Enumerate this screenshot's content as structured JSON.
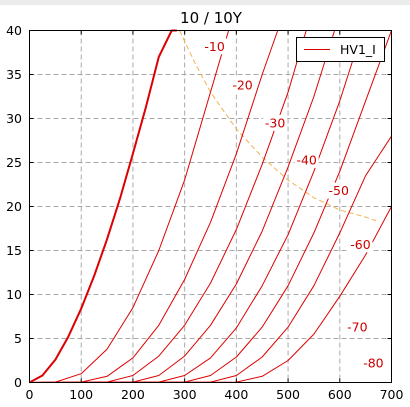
{
  "chart_data": {
    "type": "line",
    "title": "10 / 10Y",
    "xlabel": "",
    "ylabel": "",
    "xlim": [
      0,
      700
    ],
    "ylim": [
      0,
      40
    ],
    "xticks": [
      0,
      100,
      200,
      300,
      400,
      500,
      600,
      700
    ],
    "yticks": [
      0,
      5,
      10,
      15,
      20,
      25,
      30,
      35,
      40
    ],
    "grid": true,
    "grid_style": "dashed",
    "legend": {
      "entries": [
        "HV1_I"
      ],
      "position": "top-right"
    },
    "series": [
      {
        "name": "HV1_I",
        "grid_voltage": 0,
        "bold": true,
        "x": [
          0,
          25,
          50,
          75,
          100,
          125,
          150,
          175,
          200,
          225,
          250,
          275,
          285
        ],
        "y": [
          0,
          0.8,
          2.6,
          5.2,
          8.4,
          12.1,
          16.3,
          20.9,
          26.0,
          31.3,
          37.0,
          40.0,
          40.0
        ]
      },
      {
        "grid_voltage": -10,
        "label": "-10",
        "x": [
          0,
          50,
          100,
          150,
          200,
          250,
          300,
          350,
          385
        ],
        "y": [
          0,
          0.05,
          1.0,
          3.8,
          8.5,
          15.0,
          23.0,
          33.0,
          40.0
        ]
      },
      {
        "grid_voltage": -20,
        "label": "-20",
        "x": [
          0,
          100,
          150,
          200,
          250,
          300,
          350,
          400,
          450,
          480
        ],
        "y": [
          0,
          0.05,
          0.7,
          2.8,
          6.5,
          11.7,
          18.2,
          26.0,
          35.0,
          40.0
        ]
      },
      {
        "grid_voltage": -30,
        "label": "-30",
        "x": [
          0,
          150,
          200,
          250,
          300,
          350,
          400,
          450,
          500,
          535
        ],
        "y": [
          0,
          0.05,
          0.8,
          3.0,
          6.5,
          11.3,
          17.4,
          24.8,
          33.0,
          40.0
        ]
      },
      {
        "grid_voltage": -40,
        "label": "-40",
        "x": [
          0,
          200,
          250,
          300,
          350,
          400,
          450,
          500,
          550,
          590
        ],
        "y": [
          0,
          0.05,
          0.8,
          3.0,
          6.5,
          11.2,
          17.2,
          24.5,
          32.5,
          40.0
        ]
      },
      {
        "grid_voltage": -50,
        "label": "-50",
        "x": [
          0,
          250,
          300,
          350,
          400,
          450,
          500,
          550,
          600,
          630
        ],
        "y": [
          0,
          0.05,
          0.8,
          2.8,
          6.2,
          11.0,
          16.8,
          24.0,
          32.0,
          37.5
        ]
      },
      {
        "grid_voltage": -60,
        "label": "-60",
        "x": [
          0,
          300,
          350,
          400,
          450,
          500,
          550,
          600,
          650,
          700
        ],
        "y": [
          0,
          0.05,
          0.8,
          2.9,
          6.3,
          11.0,
          17.0,
          24.0,
          32.0,
          40.0
        ]
      },
      {
        "grid_voltage": -70,
        "label": "-70",
        "x": [
          0,
          350,
          400,
          450,
          500,
          550,
          600,
          650,
          700
        ],
        "y": [
          0,
          0.05,
          0.8,
          2.9,
          6.3,
          11.0,
          17.0,
          23.5,
          28.0
        ]
      },
      {
        "grid_voltage": -80,
        "label": "-80",
        "x": [
          0,
          400,
          450,
          500,
          550,
          600,
          650,
          700
        ],
        "y": [
          0,
          0.05,
          0.7,
          2.5,
          5.5,
          9.8,
          14.5,
          20.0
        ]
      }
    ],
    "dissipation_curve": {
      "style": "dashed",
      "color": "#f2b450",
      "x": [
        290,
        320,
        350,
        400,
        450,
        500,
        550,
        600,
        650,
        670
      ],
      "y": [
        40,
        36.3,
        33.0,
        28.8,
        25.6,
        23.0,
        21.0,
        19.6,
        18.8,
        18.4
      ]
    },
    "label_points": [
      {
        "text": "-10",
        "x": 358,
        "y": 38.2
      },
      {
        "text": "-20",
        "x": 412,
        "y": 33.8
      },
      {
        "text": "-30",
        "x": 475,
        "y": 29.5
      },
      {
        "text": "-40",
        "x": 536,
        "y": 25.3
      },
      {
        "text": "-50",
        "x": 598,
        "y": 21.8
      },
      {
        "text": "-60",
        "x": 640,
        "y": 15.7
      },
      {
        "text": "-70",
        "x": 634,
        "y": 6.3
      },
      {
        "text": "-80",
        "x": 665,
        "y": 2.2
      }
    ],
    "colors": {
      "curves": "#dd0000",
      "labels": "#cc0000",
      "dissipation": "#f2b450",
      "grid": "#aaaaaa"
    }
  }
}
